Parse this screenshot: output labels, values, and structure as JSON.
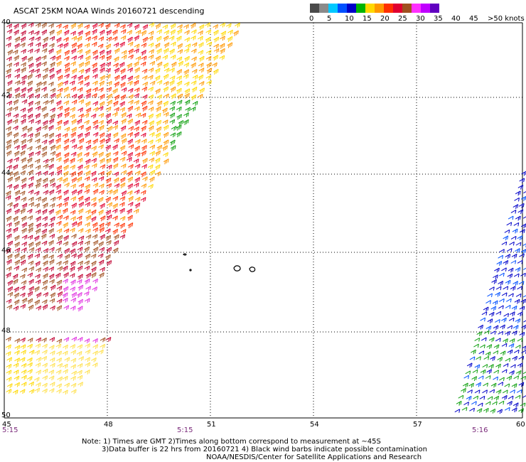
{
  "header": {
    "title": "ASCAT 25KM NOAA Winds 20160721 descending"
  },
  "legend": {
    "unit_label": ">50 knots",
    "ticks": [
      "0",
      "5",
      "10",
      "15",
      "20",
      "25",
      "30",
      "35",
      "40",
      "45"
    ],
    "colors": [
      "#4a4a4a",
      "#8a8a8a",
      "#00c8ff",
      "#0050ff",
      "#0000c8",
      "#00b400",
      "#ffd800",
      "#ff9800",
      "#ff3000",
      "#e00030",
      "#a05020",
      "#ff30ff",
      "#c000ff",
      "#6000c0"
    ]
  },
  "axes": {
    "lat_labels": [
      "40",
      "42",
      "44",
      "46",
      "48",
      "50"
    ],
    "lon_labels": [
      "45",
      "48",
      "51",
      "54",
      "57",
      "60"
    ],
    "times": [
      "5:15",
      "5:15",
      "5:16"
    ]
  },
  "notes": {
    "line1": "Note: 1) Times are GMT  2)Times along bottom correspond to measurement at ~45S",
    "line2": "3)Data buffer is 22 hrs from 20160721  4) Black wind barbs indicate possible contamination",
    "line3": "NOAA/NESDIS/Center for Satellite Applications and Research"
  }
}
